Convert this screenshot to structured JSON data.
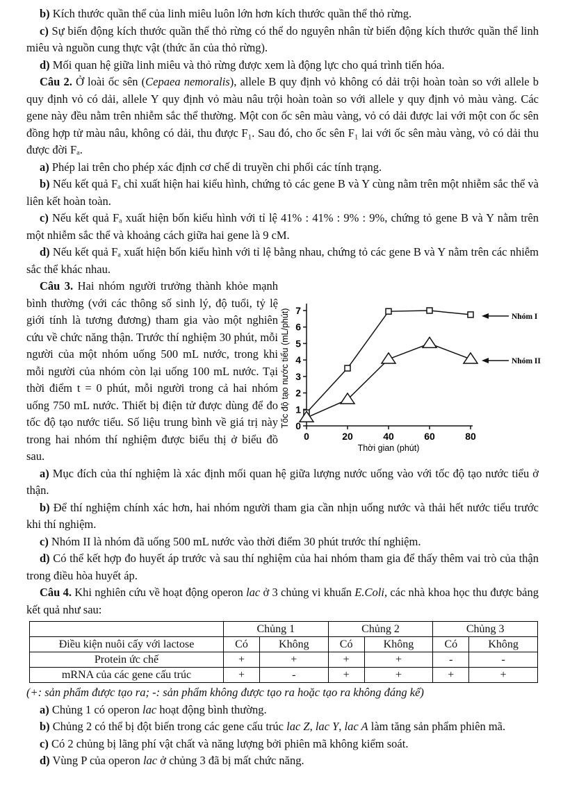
{
  "paragraphs_top": [
    [
      {
        "t": "b)",
        "b": 1
      },
      {
        "t": " Kích thước quần thể của linh miêu luôn lớn hơn kích thước quần thể thỏ rừng."
      }
    ],
    [
      {
        "t": "c)",
        "b": 1
      },
      {
        "t": " Sự biến động kích thước quần thể thỏ rừng có thể do nguyên nhân từ biến động kích thước quần thể linh miêu và nguồn cung thực vật (thức ăn của thỏ rừng)."
      }
    ],
    [
      {
        "t": "d)",
        "b": 1
      },
      {
        "t": " Mối quan hệ giữa linh miêu và thỏ rừng được xem là động lực cho quá trình tiến hóa."
      }
    ],
    [
      {
        "t": "Câu 2.",
        "b": 1
      },
      {
        "t": " Ở loài ốc sên ("
      },
      {
        "t": "Cepaea nemoralis",
        "i": 1
      },
      {
        "t": "), allele B quy định vỏ không có dải trội hoàn toàn so với allele b quy định vỏ có dải, allele Y quy định vỏ màu nâu trội hoàn toàn so với allele y quy định vỏ màu vàng. Các gene này đều nằm trên nhiễm sắc thể thường. Một con ốc sên màu vàng, vỏ có dải được lai với một con ốc sên đồng hợp tử màu nâu, không có dải, thu được F₁. Sau đó, cho ốc sên F₁ lai với ốc sên màu vàng, vỏ có dải thu được đời Fₐ."
      }
    ],
    [
      {
        "t": "a)",
        "b": 1
      },
      {
        "t": " Phép lai trên cho phép xác định cơ chế di truyền chi phối các tính trạng."
      }
    ],
    [
      {
        "t": "b)",
        "b": 1
      },
      {
        "t": " Nếu kết quả Fₐ chỉ xuất hiện hai kiểu hình, chứng tỏ các gene B và Y cùng nằm trên một nhiễm sắc thể và liên kết hoàn toàn."
      }
    ],
    [
      {
        "t": "c)",
        "b": 1
      },
      {
        "t": " Nếu kết quả Fₐ xuất hiện bốn kiểu hình với tỉ lệ 41% : 41% : 9% : 9%, chứng tỏ gene B và Y nằm trên một nhiễm sắc thể và khoảng cách giữa hai gene là 9 cM."
      }
    ],
    [
      {
        "t": "d)",
        "b": 1
      },
      {
        "t": " Nếu kết quả Fₐ xuất hiện bốn kiểu hình với tỉ lệ bằng nhau, chứng tỏ các gene B và Y nằm trên các nhiễm sắc thể khác nhau."
      }
    ]
  ],
  "q3_intro": [
    {
      "t": "Câu 3.",
      "b": 1
    },
    {
      "t": " Hai nhóm người trưởng thành khỏe mạnh bình thường (với các thông số sinh lý, độ tuổi, tỷ lệ giới tính là tương đương) tham gia vào một nghiên cứu về chức năng thận. Trước thí nghiệm 30 phút, mỗi người của một nhóm uống 500 mL nước, trong khi mỗi người của nhóm còn lại uống 100 mL nước. Tại thời điểm t = 0 phút, mỗi người trong cả hai nhóm uống 750 mL nước. Thiết bị điện tử được dùng để đo tốc độ tạo nước tiểu. Số liệu trung bình về giá trị này trong hai nhóm thí nghiệm được biểu thị ở biểu đồ sau."
    }
  ],
  "paragraphs_mid": [
    [
      {
        "t": "a)",
        "b": 1
      },
      {
        "t": " Mục đích của thí nghiệm là xác định mối quan hệ giữa lượng nước uống vào với tốc độ tạo nước tiểu ở thận."
      }
    ],
    [
      {
        "t": "b)",
        "b": 1
      },
      {
        "t": " Để thí nghiệm chính xác hơn, hai nhóm người tham gia cần nhịn uống nước và thải hết nước tiểu trước khi thí nghiệm."
      }
    ],
    [
      {
        "t": "c)",
        "b": 1
      },
      {
        "t": " Nhóm II là nhóm đã uống 500 mL nước vào thời điểm 30 phút trước thí nghiệm."
      }
    ],
    [
      {
        "t": "d)",
        "b": 1
      },
      {
        "t": " Có thể kết hợp đo huyết áp trước và sau thí nghiệm của hai nhóm tham gia để thấy thêm vai trò của thận trong điều hòa huyết áp."
      }
    ],
    [
      {
        "t": "Câu 4.",
        "b": 1
      },
      {
        "t": " Khi nghiên cứu về hoạt động operon "
      },
      {
        "t": "lac",
        "i": 1
      },
      {
        "t": " ở 3 chủng vi khuẩn "
      },
      {
        "t": "E.Coli",
        "i": 1
      },
      {
        "t": ", các nhà khoa học thu được bảng kết quả như sau:"
      }
    ]
  ],
  "table": {
    "header": [
      "",
      "Chủng 1",
      "Chủng 2",
      "Chủng 3"
    ],
    "rows": [
      [
        "Điều kiện nuôi cấy với lactose",
        "Có",
        "Không",
        "Có",
        "Không",
        "Có",
        "Không"
      ],
      [
        "Protein ức chế",
        "+",
        "+",
        "+",
        "+",
        "-",
        "-"
      ],
      [
        "mRNA của các gene cấu trúc",
        "+",
        "-",
        "+",
        "+",
        "+",
        "+"
      ]
    ],
    "caption": "(+: sản phẩm được tạo ra;  -: sản phẩm không được tạo ra hoặc tạo ra không đáng kể)"
  },
  "paragraphs_bottom": [
    [
      {
        "t": "a)",
        "b": 1
      },
      {
        "t": " Chủng 1 có operon "
      },
      {
        "t": "lac",
        "i": 1
      },
      {
        "t": " hoạt động bình thường."
      }
    ],
    [
      {
        "t": "b)",
        "b": 1
      },
      {
        "t": " Chủng 2 có thể bị đột biến trong các gene cấu trúc "
      },
      {
        "t": "lac Z",
        "i": 1
      },
      {
        "t": ", "
      },
      {
        "t": "lac Y",
        "i": 1
      },
      {
        "t": ", "
      },
      {
        "t": "lac A",
        "i": 1
      },
      {
        "t": " làm tăng sản phẩm phiên mã."
      }
    ],
    [
      {
        "t": "c)",
        "b": 1
      },
      {
        "t": " Có 2 chủng bị lãng phí vật chất và năng lượng bởi phiên mã không kiểm soát."
      }
    ],
    [
      {
        "t": "d)",
        "b": 1
      },
      {
        "t": " Vùng P của operon "
      },
      {
        "t": "lac",
        "i": 1
      },
      {
        "t": " ở chủng 3 đã bị mất chức năng."
      }
    ]
  ],
  "chart_data": {
    "type": "line",
    "xlabel": "Thời gian (phút)",
    "ylabel": "Tốc độ tạo nước tiểu (mL/phút)",
    "x": [
      0,
      20,
      40,
      60,
      80
    ],
    "xticks": [
      "0",
      "20",
      "40",
      "60",
      "80"
    ],
    "yticks": [
      "0",
      "1",
      "2",
      "3",
      "4",
      "5",
      "6",
      "7"
    ],
    "xlim": [
      0,
      80
    ],
    "ylim": [
      0,
      7
    ],
    "grid": false,
    "series": [
      {
        "name": "Nhóm I",
        "marker": "square",
        "values": [
          0.8,
          3.5,
          6.95,
          7.0,
          6.75
        ]
      },
      {
        "name": "Nhóm II",
        "marker": "triangle",
        "values": [
          0.5,
          1.6,
          4.05,
          5.0,
          4.05
        ]
      }
    ],
    "legend": "right, arrow labels"
  }
}
